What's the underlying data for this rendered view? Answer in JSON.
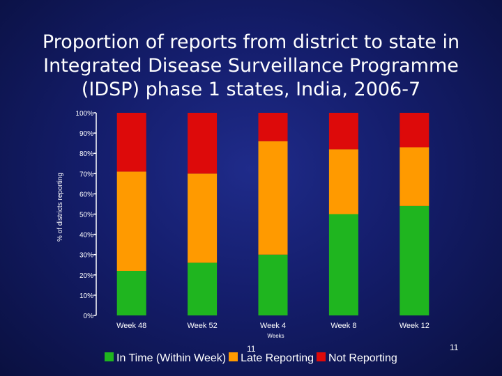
{
  "title": "Proportion of reports from district to state in Integrated Disease Surveillance Programme (IDSP) phase 1 states, India, 2006-7",
  "slide_number": "11",
  "colors": {
    "in_time": "#1fb51f",
    "late": "#ff9a00",
    "not_reporting": "#dd0a0a",
    "axis": "#ffffff",
    "text": "#ffffff"
  },
  "chart_data": {
    "type": "bar",
    "stacked": true,
    "title": "",
    "xlabel": "Weeks",
    "ylabel": "% of districts reporting",
    "categories": [
      "Week 48",
      "Week 52",
      "Week 4",
      "Week 8",
      "Week 12"
    ],
    "series": [
      {
        "name": "In Time (Within Week)",
        "values": [
          22,
          26,
          30,
          50,
          54
        ]
      },
      {
        "name": "Late Reporting",
        "values": [
          49,
          44,
          56,
          32,
          29
        ]
      },
      {
        "name": "Not Reporting",
        "values": [
          29,
          30,
          14,
          18,
          17
        ]
      }
    ],
    "ylim": [
      0,
      100
    ],
    "yticks": [
      "0%",
      "10%",
      "20%",
      "30%",
      "40%",
      "50%",
      "60%",
      "70%",
      "80%",
      "90%",
      "100%"
    ],
    "grid": false,
    "legend_position": "bottom"
  }
}
